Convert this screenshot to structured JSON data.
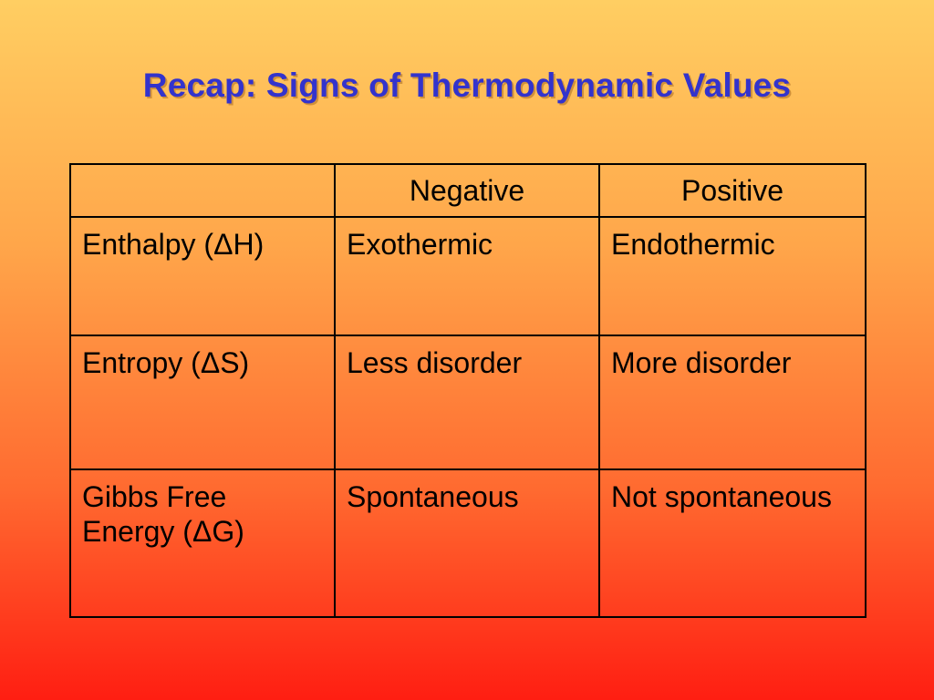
{
  "slide": {
    "title": "Recap: Signs of Thermodynamic Values"
  },
  "table": {
    "headers": [
      "",
      "Negative",
      "Positive"
    ],
    "rows": [
      {
        "label": "Enthalpy (ΔH)",
        "negative": "Exothermic",
        "positive": "Endothermic"
      },
      {
        "label": "Entropy (ΔS)",
        "negative": "Less disorder",
        "positive": "More disorder"
      },
      {
        "label": "Gibbs Free Energy (ΔG)",
        "negative": "Spontaneous",
        "positive": "Not spontaneous"
      }
    ]
  },
  "colors": {
    "title": "#3333cc",
    "gradient_top": "#ffce62",
    "gradient_bottom": "#ff1e12",
    "border": "#000000"
  }
}
